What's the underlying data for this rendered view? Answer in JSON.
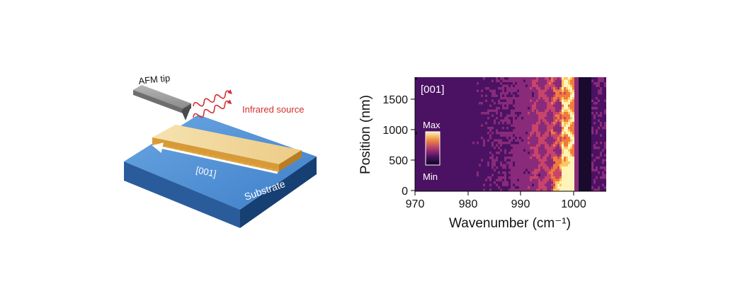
{
  "schematic": {
    "afm_tip_label": "AFM tip",
    "source_label": "Infrared source",
    "direction_label": "[001]",
    "substrate_label": "Substrate"
  },
  "map": {
    "panel_label": "[001]",
    "x_label": "Wavenumber (cm⁻¹)",
    "y_label": "Position (nm)",
    "x_ticks": [
      "970",
      "980",
      "990",
      "1000"
    ],
    "y_ticks": [
      "0",
      "500",
      "1000",
      "1500"
    ],
    "colorbar_max": "Max",
    "colorbar_min": "Min",
    "colormap_colors": [
      "#1a0a2e",
      "#4b1263",
      "#8a2a7a",
      "#c8446a",
      "#ef7b3c",
      "#fbc75e",
      "#fff4b8"
    ]
  },
  "colors": {
    "substrate_top": "#5a97d8",
    "substrate_side": "#1f4e8c",
    "crystal_top": "#f4dba0",
    "crystal_edge": "#e0a63c",
    "infrared_wave": "#d32f2f",
    "tip": "#8c8c8c"
  }
}
